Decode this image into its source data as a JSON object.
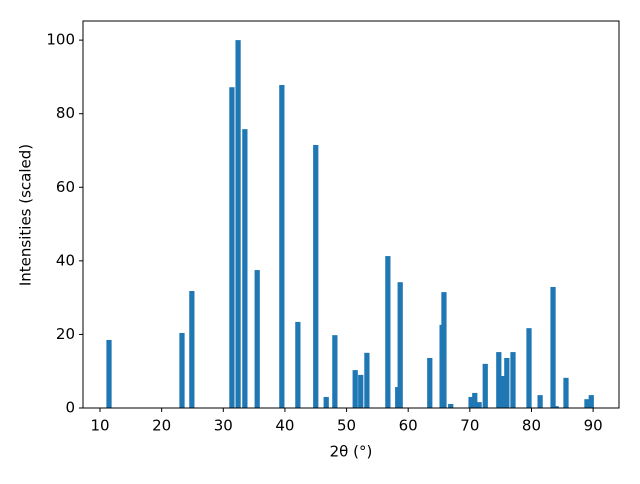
{
  "chart_data": {
    "type": "bar",
    "x_label": "2θ (°)",
    "y_label": "Intensities (scaled)",
    "x": [
      11.46,
      23.3,
      24.9,
      31.4,
      32.4,
      33.5,
      35.5,
      39.5,
      42.1,
      45.0,
      46.7,
      48.1,
      51.4,
      52.3,
      53.3,
      56.7,
      58.3,
      58.7,
      63.5,
      65.5,
      65.8,
      66.9,
      70.2,
      70.8,
      71.5,
      72.5,
      74.7,
      75.4,
      76.0,
      77.0,
      79.6,
      81.4,
      83.5,
      84.0,
      85.6,
      89.0,
      89.7
    ],
    "values": [
      18.5,
      20.4,
      31.8,
      87.2,
      100,
      75.8,
      37.5,
      87.8,
      23.4,
      71.5,
      3.0,
      19.8,
      10.3,
      9.0,
      15.0,
      41.3,
      5.7,
      34.2,
      13.6,
      22.6,
      31.5,
      1.1,
      3.0,
      4.1,
      1.6,
      12.0,
      15.2,
      8.7,
      13.6,
      15.2,
      21.7,
      3.5,
      32.9,
      0.5,
      8.2,
      2.4,
      3.5
    ],
    "color": "#1f77b4",
    "xlim": [
      7.24,
      94.2
    ],
    "xticks": [
      10,
      20,
      30,
      40,
      50,
      60,
      70,
      80,
      90
    ],
    "ylim": [
      0,
      105.2
    ],
    "yticks": [
      0,
      20,
      40,
      60,
      80,
      100
    ]
  }
}
